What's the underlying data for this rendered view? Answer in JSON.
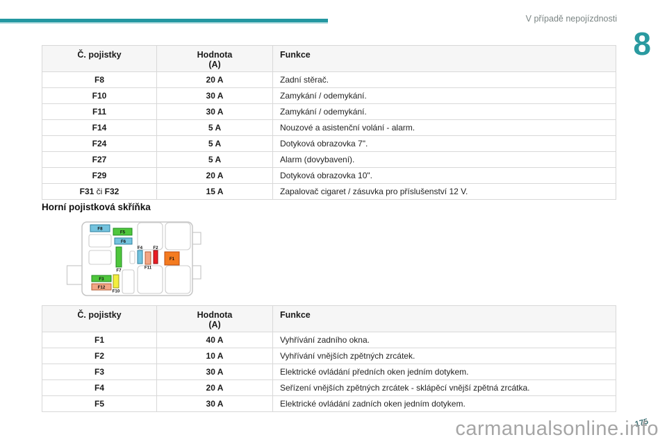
{
  "header": {
    "running_head": "V případě nepojízdnosti",
    "chapter": "8"
  },
  "section": {
    "heading": "Horní pojistková skříňka"
  },
  "table_headers": {
    "fuse": "Č. pojistky",
    "value_line1": "Hodnota",
    "value_line2": "(A)",
    "function": "Funkce"
  },
  "tables": [
    {
      "rows": [
        {
          "fuse": "F8",
          "value": "20 A",
          "func": "Zadní stěrač."
        },
        {
          "fuse": "F10",
          "value": "30 A",
          "func": "Zamykání / odemykání."
        },
        {
          "fuse": "F11",
          "value": "30 A",
          "func": "Zamykání / odemykání."
        },
        {
          "fuse": "F14",
          "value": "5 A",
          "func": "Nouzové a asistenční volání - alarm."
        },
        {
          "fuse": "F24",
          "value": "5 A",
          "func": "Dotyková obrazovka 7\"."
        },
        {
          "fuse": "F27",
          "value": "5 A",
          "func": "Alarm (dovybavení)."
        },
        {
          "fuse": "F29",
          "value": "20 A",
          "func": "Dotyková obrazovka 10\"."
        },
        {
          "fuse": "F31 či F32",
          "value": "15 A",
          "func": "Zapalovač cigaret / zásuvka pro příslušenství 12 V."
        }
      ]
    },
    {
      "rows": [
        {
          "fuse": "F1",
          "value": "40 A",
          "func": "Vyhřívání zadního okna."
        },
        {
          "fuse": "F2",
          "value": "10 A",
          "func": "Vyhřívání vnějších zpětných zrcátek."
        },
        {
          "fuse": "F3",
          "value": "30 A",
          "func": "Elektrické ovládání předních oken jedním dotykem."
        },
        {
          "fuse": "F4",
          "value": "20 A",
          "func": "Seřízení vnějších zpětných zrcátek - sklápěcí vnější zpětná zrcátka."
        },
        {
          "fuse": "F5",
          "value": "30 A",
          "func": "Elektrické ovládání zadních oken jedním dotykem."
        }
      ]
    }
  ],
  "diagram": {
    "fuses": [
      {
        "id": "F8",
        "fill": "#74c3de",
        "stroke": "#2e7f9e"
      },
      {
        "id": "F5",
        "fill": "#4fc63c",
        "stroke": "#1f8a1f"
      },
      {
        "id": "F6",
        "fill": "#74c3de",
        "stroke": "#2e7f9e"
      },
      {
        "id": "F7",
        "fill": "#4fc63c",
        "stroke": "#1f8a1f"
      },
      {
        "id": "F4",
        "fill": "#74c3de",
        "stroke": "#2e7f9e"
      },
      {
        "id": "F11",
        "fill": "#f2a685",
        "stroke": "#b35c33"
      },
      {
        "id": "F2",
        "fill": "#ea1c24",
        "stroke": "#8b1015"
      },
      {
        "id": "F1",
        "fill": "#f47b20",
        "stroke": "#b84a10"
      },
      {
        "id": "F3",
        "fill": "#4fc63c",
        "stroke": "#1f8a1f"
      },
      {
        "id": "F12",
        "fill": "#f2a685",
        "stroke": "#b35c33"
      },
      {
        "id": "F10",
        "fill": "#f3ee3e",
        "stroke": "#9d9a20"
      }
    ]
  },
  "footer": {
    "page_number": "175",
    "watermark": "carmanualsonline.info"
  },
  "colors": {
    "accent_teal": "#2397a1",
    "watermark_gray": "#989898"
  }
}
